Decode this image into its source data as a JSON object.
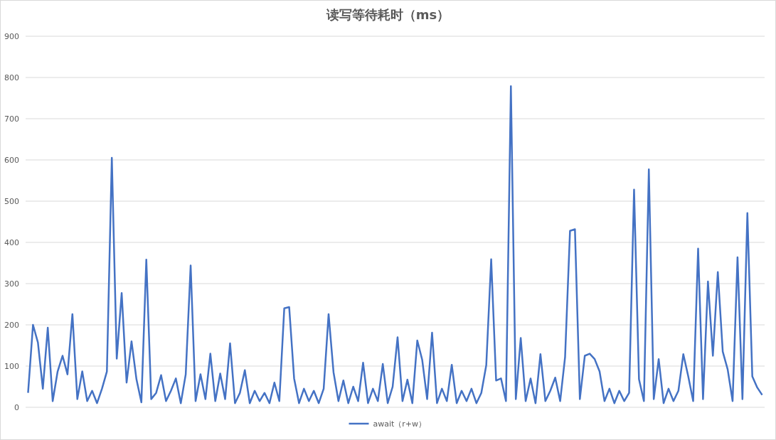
{
  "chart_data": {
    "type": "line",
    "title": "读写等待耗时（ms）",
    "categories": [
      null,
      null,
      null,
      null,
      null,
      null,
      null,
      null,
      null,
      null,
      null,
      null,
      null,
      null,
      null,
      null,
      null,
      null,
      null,
      null,
      null,
      null,
      null,
      null,
      null,
      null,
      null,
      null,
      null,
      null,
      null,
      null,
      null,
      null,
      null,
      null,
      null,
      null,
      null,
      null,
      null,
      null,
      null,
      null,
      null,
      null,
      null,
      null,
      null,
      null,
      null,
      null,
      null,
      null,
      null,
      null,
      null,
      null,
      null,
      null,
      null,
      null,
      null,
      null,
      null,
      null,
      null,
      null,
      null,
      null,
      null,
      null,
      null,
      null,
      null,
      null,
      null,
      null,
      null,
      null,
      null,
      null,
      null,
      null,
      null,
      null,
      null,
      null,
      null,
      null,
      null,
      null,
      null,
      null,
      null,
      null,
      null,
      null,
      null,
      null,
      null,
      null,
      null,
      null,
      null,
      null,
      null,
      null,
      null,
      null,
      null,
      null,
      null,
      null,
      null,
      null,
      null,
      null,
      null,
      null,
      null,
      null,
      null,
      null,
      null,
      null,
      null,
      null,
      null,
      null,
      null,
      null,
      null,
      null,
      null,
      null,
      null,
      null,
      null,
      null,
      null,
      null,
      null,
      null,
      null,
      null,
      null,
      null,
      null,
      null
    ],
    "series": [
      {
        "name": "await（r+w）",
        "color": "#4472c4",
        "values": [
          35,
          200,
          157,
          45,
          193,
          15,
          87,
          125,
          80,
          226,
          20,
          87,
          15,
          40,
          10,
          45,
          87,
          605,
          118,
          277,
          60,
          160,
          68,
          12,
          358,
          20,
          35,
          78,
          15,
          40,
          70,
          10,
          80,
          344,
          15,
          80,
          20,
          130,
          15,
          82,
          20,
          155,
          10,
          35,
          90,
          10,
          40,
          15,
          35,
          10,
          60,
          15,
          240,
          243,
          70,
          10,
          45,
          15,
          40,
          10,
          45,
          226,
          85,
          15,
          65,
          10,
          50,
          15,
          108,
          10,
          45,
          15,
          105,
          10,
          50,
          170,
          15,
          67,
          10,
          162,
          115,
          20,
          181,
          10,
          45,
          15,
          103,
          10,
          40,
          15,
          45,
          10,
          35,
          102,
          359,
          65,
          70,
          15,
          779,
          20,
          168,
          15,
          70,
          10,
          129,
          15,
          40,
          72,
          15,
          122,
          428,
          432,
          20,
          125,
          130,
          117,
          87,
          15,
          45,
          10,
          40,
          15,
          35,
          528,
          68,
          15,
          577,
          20,
          117,
          10,
          45,
          15,
          40,
          129,
          75,
          15,
          385,
          20,
          305,
          125,
          328,
          135,
          92,
          15,
          364,
          20,
          471,
          75,
          48,
          30
        ]
      }
    ],
    "ylim": [
      0,
      900
    ],
    "yticks": [
      0,
      100,
      200,
      300,
      400,
      500,
      600,
      700,
      800,
      900
    ],
    "grid": "y",
    "legend": "bottom",
    "line_style": "solid"
  }
}
